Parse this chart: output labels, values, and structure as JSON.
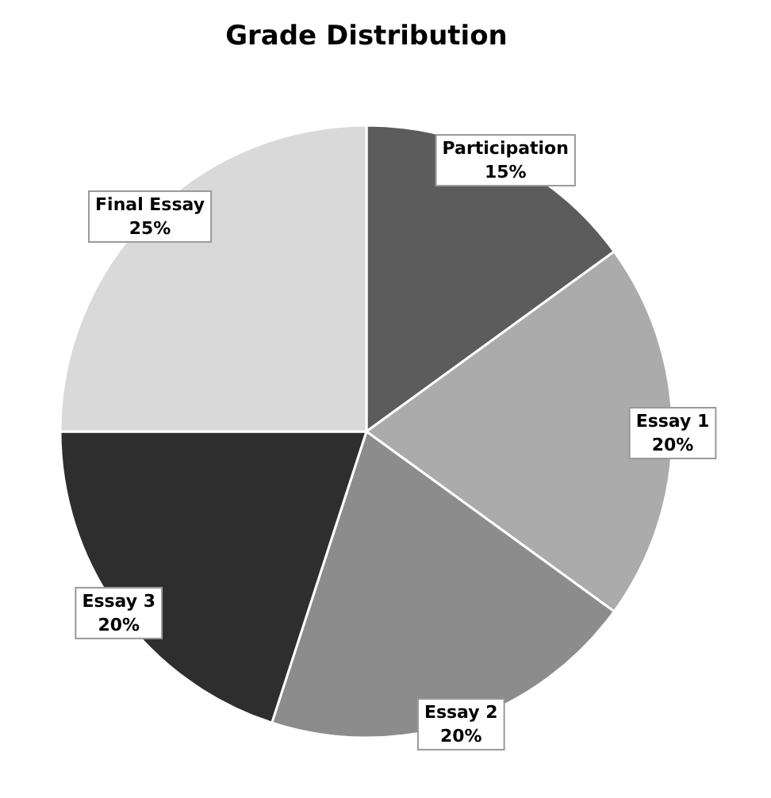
{
  "chart_data": {
    "type": "pie",
    "title": "Grade Distribution",
    "categories": [
      "Participation",
      "Essay 1",
      "Essay 2",
      "Essay 3",
      "Final Essay"
    ],
    "values": [
      15,
      20,
      20,
      20,
      25
    ],
    "value_labels": [
      "15%",
      "20%",
      "20%",
      "20%",
      "25%"
    ],
    "colors": [
      "#5c5c5c",
      "#ababab",
      "#8c8c8c",
      "#2e2e2e",
      "#d9d9d9"
    ],
    "legend": false
  }
}
